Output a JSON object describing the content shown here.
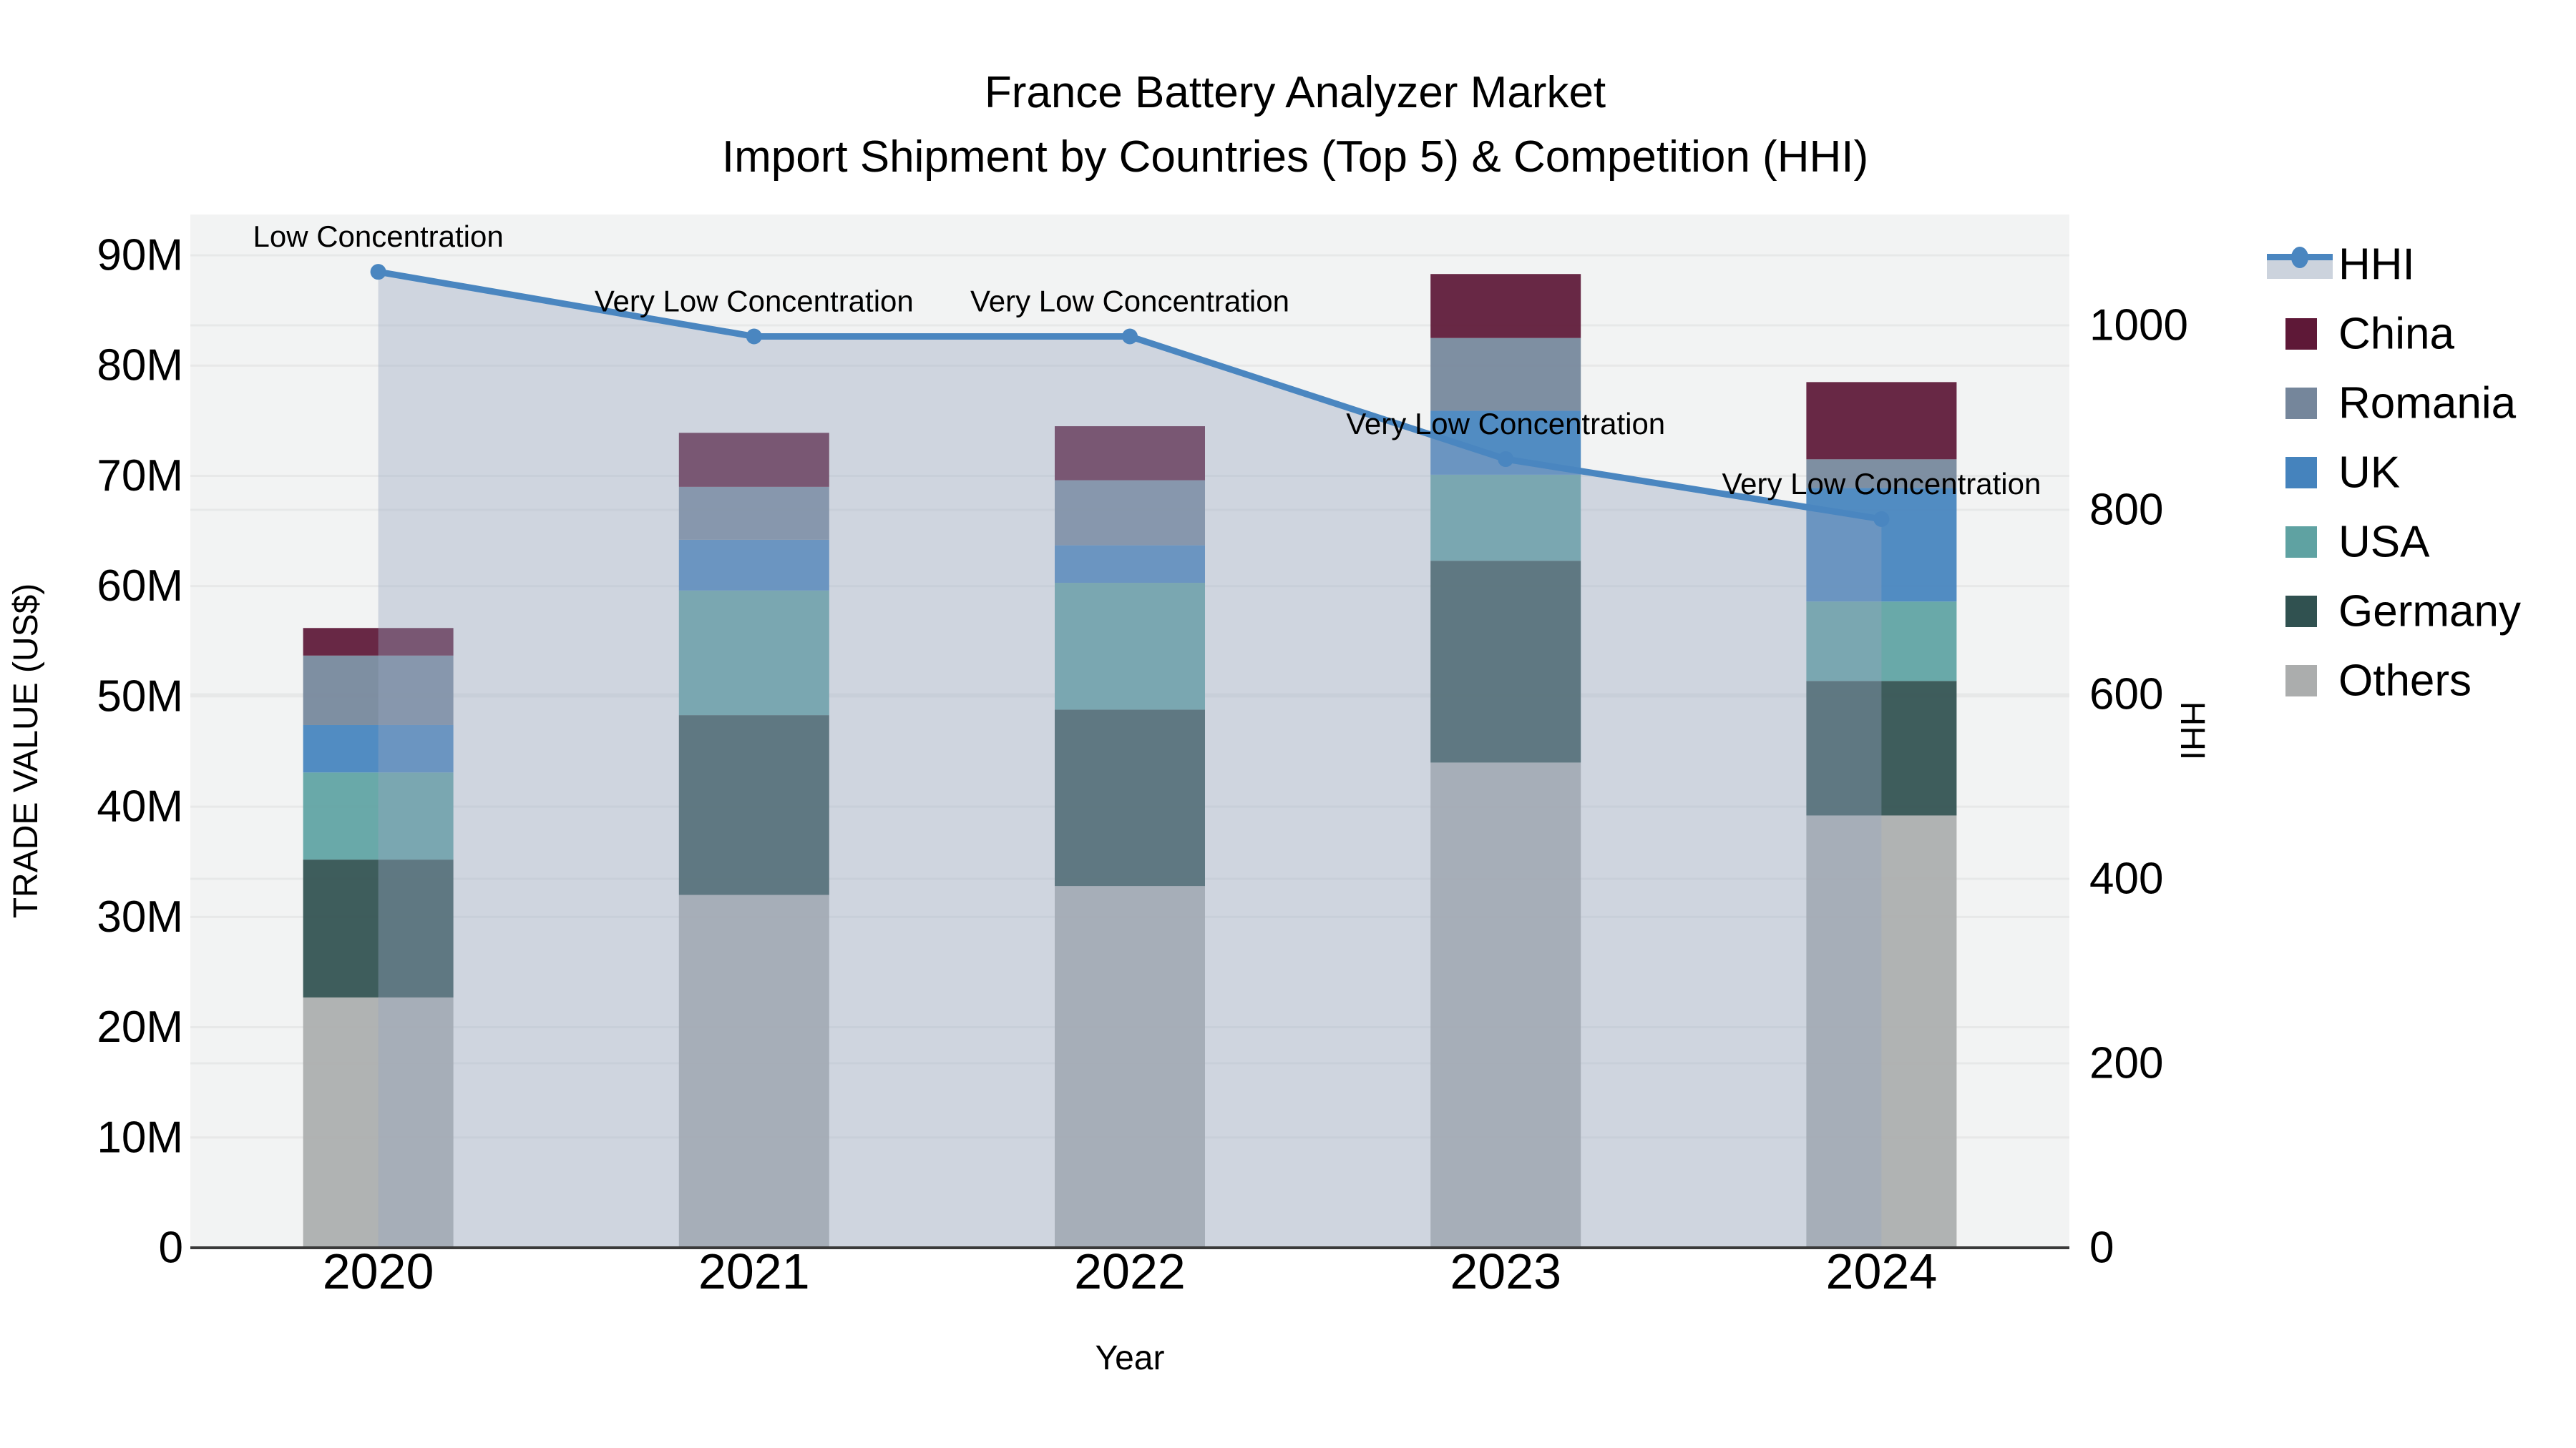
{
  "chart_data": {
    "type": "bar",
    "stacked": true,
    "title": {
      "line1": "France Battery Analyzer Market",
      "line2": "Import Shipment by Countries (Top 5) & Competition (HHI)"
    },
    "categories": [
      "2020",
      "2021",
      "2022",
      "2023",
      "2024"
    ],
    "unit": "M US$",
    "series": [
      {
        "name": "Others",
        "color": "#abadad",
        "values": [
          22.7,
          32.0,
          32.8,
          44.0,
          39.2
        ]
      },
      {
        "name": "Germany",
        "color": "#305150",
        "values": [
          12.5,
          16.3,
          16.0,
          18.3,
          12.2
        ]
      },
      {
        "name": "USA",
        "color": "#5fa2a2",
        "values": [
          7.9,
          11.3,
          11.5,
          7.8,
          7.2
        ]
      },
      {
        "name": "UK",
        "color": "#4583bd",
        "values": [
          4.3,
          4.6,
          3.4,
          5.8,
          10.3
        ]
      },
      {
        "name": "Romania",
        "color": "#75869b",
        "values": [
          6.3,
          4.8,
          5.9,
          6.6,
          2.6
        ]
      },
      {
        "name": "China",
        "color": "#5e1837",
        "values": [
          2.5,
          4.9,
          4.9,
          5.8,
          7.0
        ]
      }
    ],
    "hhi_line": {
      "name": "HHI",
      "color": "#4a86c0",
      "area_fill": "rgba(150,165,192,0.38)",
      "values": [
        1058,
        988,
        988,
        855,
        790
      ],
      "annotations": [
        "Low Concentration",
        "Very Low Concentration",
        "Very Low Concentration",
        "Very Low Concentration",
        "Very Low Concentration"
      ]
    },
    "axes": {
      "x": {
        "label": "Year"
      },
      "y_left": {
        "label": "TRADE VALUE (US$)",
        "ticks": [
          "0",
          "10M",
          "20M",
          "30M",
          "40M",
          "50M",
          "60M",
          "70M",
          "80M",
          "90M"
        ],
        "tick_values": [
          0,
          10,
          20,
          30,
          40,
          50,
          60,
          70,
          80,
          90
        ]
      },
      "y_right": {
        "label": "HHI",
        "ticks": [
          "0",
          "200",
          "400",
          "600",
          "800",
          "1000"
        ],
        "tick_values": [
          0,
          200,
          400,
          600,
          800,
          1000
        ]
      }
    },
    "legend": {
      "items": [
        {
          "label": "HHI",
          "type": "line",
          "color": "#4a86c0"
        },
        {
          "label": "China",
          "type": "swatch",
          "color": "#5e1837"
        },
        {
          "label": "Romania",
          "type": "swatch",
          "color": "#75869b"
        },
        {
          "label": "UK",
          "type": "swatch",
          "color": "#4583bd"
        },
        {
          "label": "USA",
          "type": "swatch",
          "color": "#5fa2a2"
        },
        {
          "label": "Germany",
          "type": "swatch",
          "color": "#305150"
        },
        {
          "label": "Others",
          "type": "swatch",
          "color": "#abadad"
        }
      ]
    },
    "style": {
      "plot_bg": "#f2f3f3",
      "gridline": "#e7e8e8",
      "axis_line": "#3a3a3a"
    }
  }
}
